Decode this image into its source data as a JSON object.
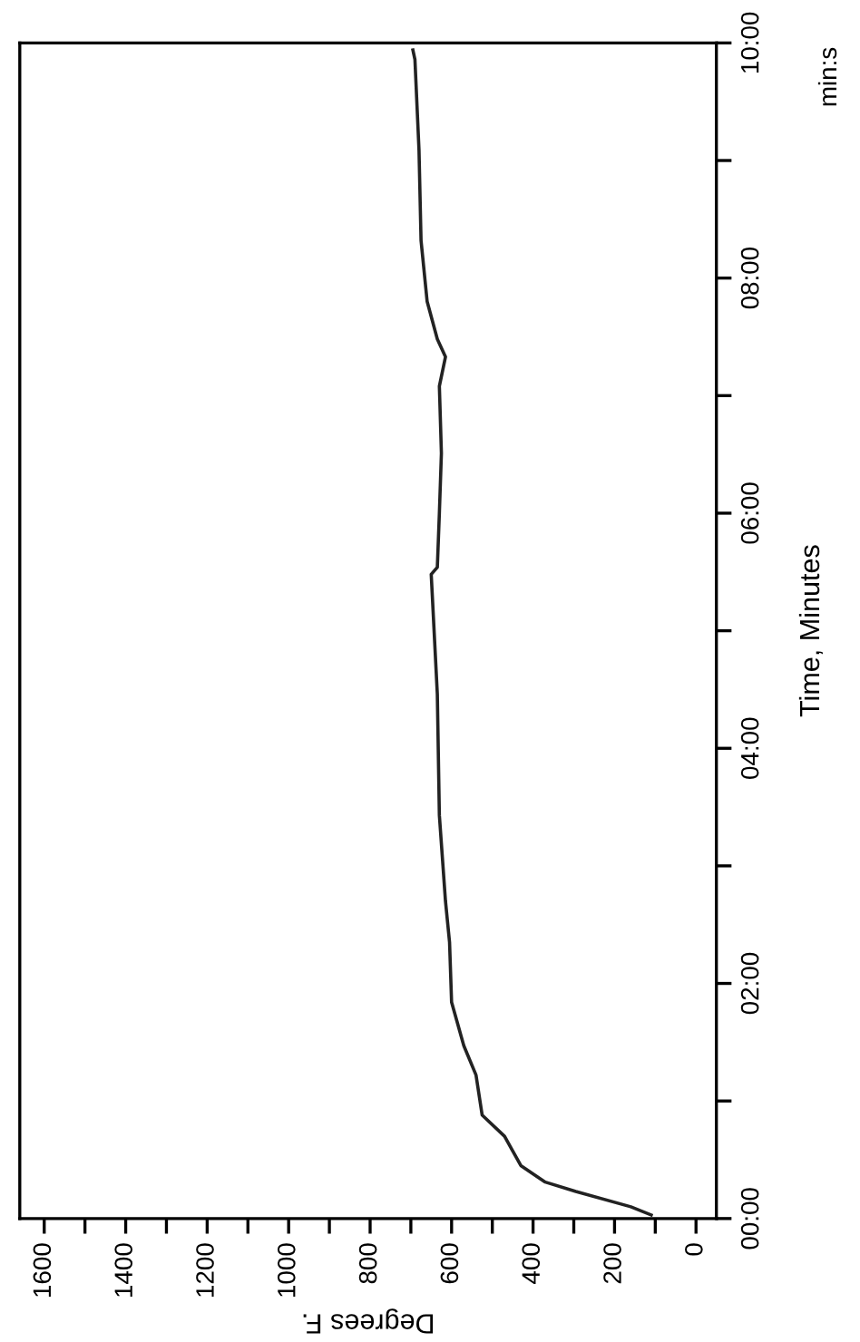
{
  "chart_data": {
    "type": "line",
    "xlabel": "Degrees F.",
    "ylabel": "Time, Minutes",
    "annotations": [
      "min:s"
    ],
    "series": [
      {
        "color": "#222222",
        "x": [
          110,
          160,
          295,
          370,
          430,
          470,
          525,
          540,
          570,
          600,
          605,
          615,
          630,
          635,
          650,
          635,
          630,
          625,
          630,
          615,
          635,
          660,
          675,
          680,
          690,
          695
        ],
        "values": [
          0.03,
          0.1,
          0.23,
          0.31,
          0.45,
          0.7,
          0.88,
          1.22,
          1.47,
          1.84,
          2.35,
          2.7,
          3.43,
          4.46,
          5.48,
          5.54,
          6.0,
          6.51,
          7.08,
          7.33,
          7.48,
          7.8,
          8.32,
          9.09,
          9.86,
          9.94
        ]
      }
    ],
    "ylim": [
      0,
      10
    ],
    "xlim": [
      1660,
      -50
    ],
    "yticks": [
      {
        "value": 0,
        "label": "00:00"
      },
      {
        "value": 1,
        "label": null
      },
      {
        "value": 2,
        "label": "02:00"
      },
      {
        "value": 3,
        "label": null
      },
      {
        "value": 4,
        "label": "04:00"
      },
      {
        "value": 5,
        "label": null
      },
      {
        "value": 6,
        "label": "06:00"
      },
      {
        "value": 7,
        "label": null
      },
      {
        "value": 8,
        "label": "08:00"
      },
      {
        "value": 9,
        "label": null
      },
      {
        "value": 10,
        "label": "10:00"
      }
    ],
    "xticks": [
      0,
      {
        "value": 100,
        "label": null
      },
      200,
      {
        "value": 300,
        "label": null
      },
      400,
      {
        "value": 500,
        "label": null
      },
      600,
      {
        "value": 700,
        "label": null
      },
      800,
      {
        "value": 900,
        "label": null
      },
      1000,
      {
        "value": 1100,
        "label": null
      },
      1200,
      {
        "value": 1300,
        "label": null
      },
      1400,
      {
        "value": 1500,
        "label": null
      },
      1600
    ],
    "grid": false,
    "legend": false,
    "marker": "none",
    "line_style": "solid"
  }
}
